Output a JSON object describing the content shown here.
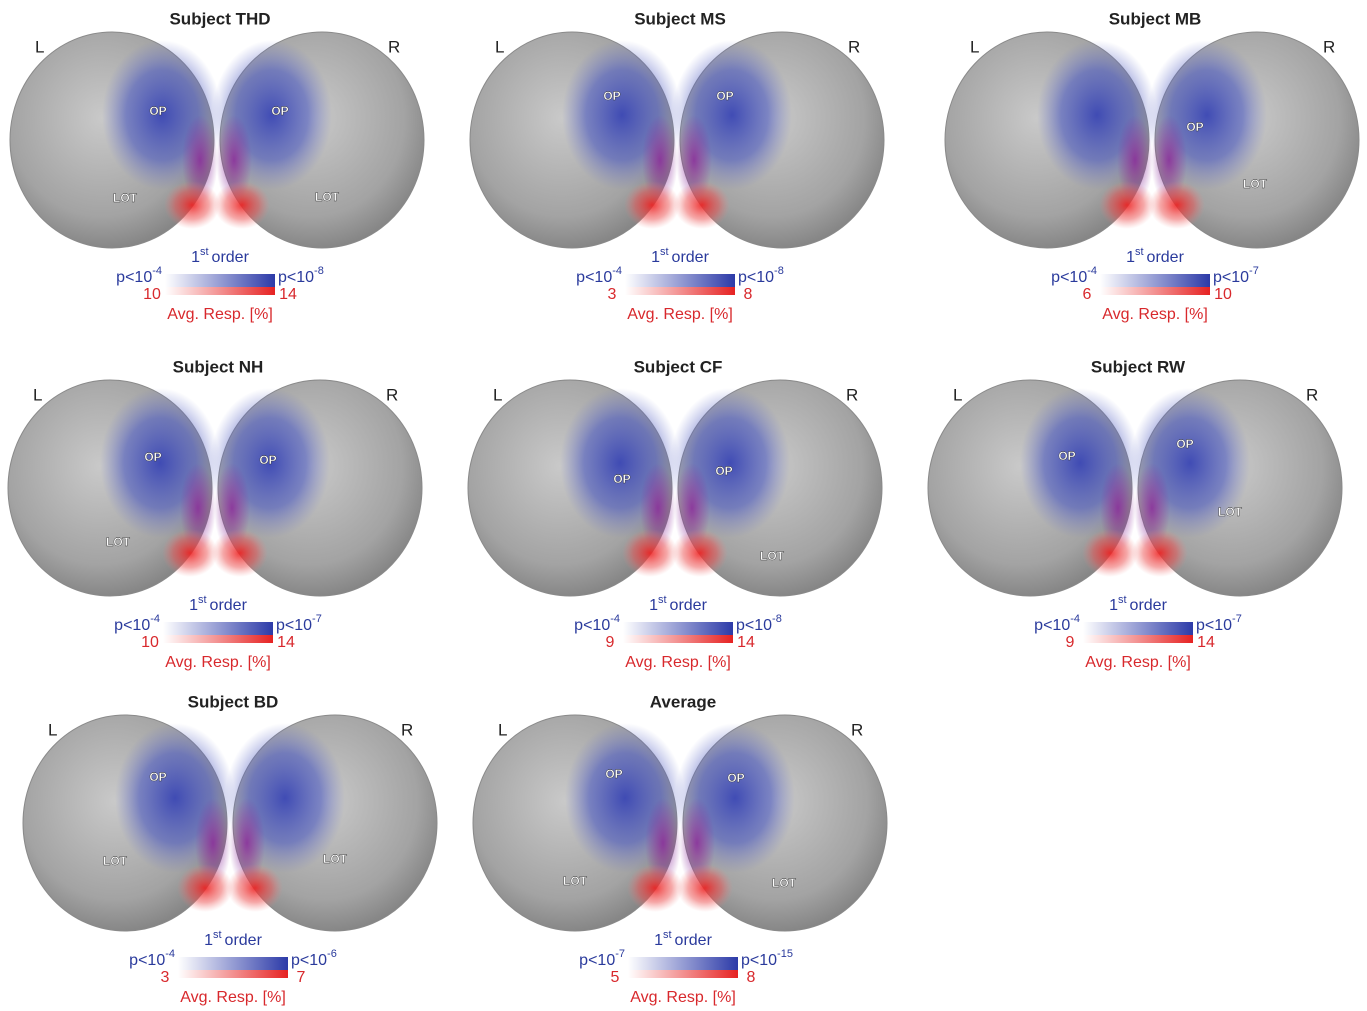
{
  "panels": [
    {
      "title": "Subject THD",
      "left": "L",
      "right": "R",
      "labels": [
        "OP",
        "LOT",
        "OP",
        "LOT"
      ],
      "legend": {
        "order_base": "1",
        "order_sup": "st",
        "order_text": "order",
        "p_low": "p<10",
        "p_low_exp": "-4",
        "p_high": "p<10",
        "p_high_exp": "-8",
        "resp_low": 10,
        "resp_high": 14,
        "resp_label": "Avg. Resp. [%]"
      }
    },
    {
      "title": "Subject MS",
      "left": "L",
      "right": "R",
      "labels": [
        "OP",
        "OP"
      ],
      "legend": {
        "order_base": "1",
        "order_sup": "st",
        "order_text": "order",
        "p_low": "p<10",
        "p_low_exp": "-4",
        "p_high": "p<10",
        "p_high_exp": "-8",
        "resp_low": 3,
        "resp_high": 8,
        "resp_label": "Avg. Resp. [%]"
      }
    },
    {
      "title": "Subject MB",
      "left": "L",
      "right": "R",
      "labels": [
        "OP",
        "LOT"
      ],
      "legend": {
        "order_base": "1",
        "order_sup": "st",
        "order_text": "order",
        "p_low": "p<10",
        "p_low_exp": "-4",
        "p_high": "p<10",
        "p_high_exp": "-7",
        "resp_low": 6,
        "resp_high": 10,
        "resp_label": "Avg. Resp. [%]"
      }
    },
    {
      "title": "Subject NH",
      "left": "L",
      "right": "R",
      "labels": [
        "OP",
        "LOT",
        "OP"
      ],
      "legend": {
        "order_base": "1",
        "order_sup": "st",
        "order_text": "order",
        "p_low": "p<10",
        "p_low_exp": "-4",
        "p_high": "p<10",
        "p_high_exp": "-7",
        "resp_low": 10,
        "resp_high": 14,
        "resp_label": "Avg. Resp. [%]"
      }
    },
    {
      "title": "Subject CF",
      "left": "L",
      "right": "R",
      "labels": [
        "OP",
        "OP",
        "LOT"
      ],
      "legend": {
        "order_base": "1",
        "order_sup": "st",
        "order_text": "order",
        "p_low": "p<10",
        "p_low_exp": "-4",
        "p_high": "p<10",
        "p_high_exp": "-8",
        "resp_low": 9,
        "resp_high": 14,
        "resp_label": "Avg. Resp. [%]"
      }
    },
    {
      "title": "Subject RW",
      "left": "L",
      "right": "R",
      "labels": [
        "OP",
        "OP",
        "LOT"
      ],
      "legend": {
        "order_base": "1",
        "order_sup": "st",
        "order_text": "order",
        "p_low": "p<10",
        "p_low_exp": "-4",
        "p_high": "p<10",
        "p_high_exp": "-7",
        "resp_low": 9,
        "resp_high": 14,
        "resp_label": "Avg. Resp. [%]"
      }
    },
    {
      "title": "Subject BD",
      "left": "L",
      "right": "R",
      "labels": [
        "OP",
        "LOT",
        "LOT"
      ],
      "legend": {
        "order_base": "1",
        "order_sup": "st",
        "order_text": "order",
        "p_low": "p<10",
        "p_low_exp": "-4",
        "p_high": "p<10",
        "p_high_exp": "-6",
        "resp_low": 3,
        "resp_high": 7,
        "resp_label": "Avg. Resp. [%]"
      }
    },
    {
      "title": "Average",
      "left": "L",
      "right": "R",
      "labels": [
        "OP",
        "LOT",
        "OP",
        "LOT"
      ],
      "legend": {
        "order_base": "1",
        "order_sup": "st",
        "order_text": "order",
        "p_low": "p<10",
        "p_low_exp": "-7",
        "p_high": "p<10",
        "p_high_exp": "-15",
        "resp_low": 5,
        "resp_high": 8,
        "resp_label": "Avg. Resp. [%]"
      }
    }
  ]
}
